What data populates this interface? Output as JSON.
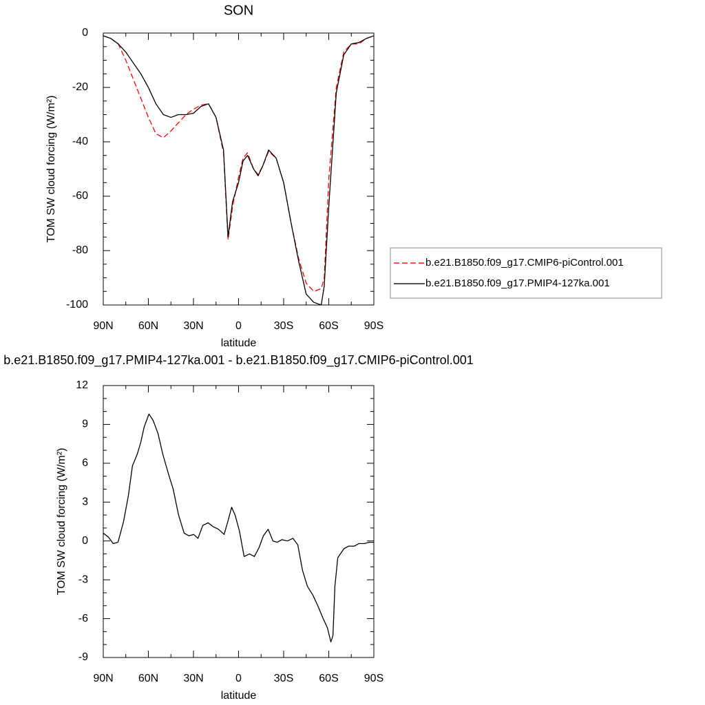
{
  "chart_data": [
    {
      "type": "line",
      "title": "SON",
      "xlabel": "latitude",
      "ylabel": "TOM SW cloud forcing (W/m²)",
      "x": [
        90,
        85,
        80,
        75,
        70,
        65,
        60,
        55,
        50,
        45,
        40,
        35,
        30,
        25,
        20,
        15,
        10,
        7,
        4,
        0,
        -3,
        -6,
        -10,
        -13,
        -16,
        -20,
        -25,
        -30,
        -35,
        -40,
        -45,
        -50,
        -55,
        -57,
        -60,
        -65,
        -70,
        -75,
        -80,
        -85,
        -90
      ],
      "series": [
        {
          "name": "b.e21.B1850.f09_g17.CMIP6-piControl.001",
          "color": "#ff0000",
          "dashed": true,
          "values": [
            -1,
            -2,
            -4,
            -10,
            -17,
            -24,
            -31,
            -37,
            -38.5,
            -36,
            -33,
            -30,
            -28,
            -26.5,
            -26,
            -31,
            -44,
            -76,
            -64,
            -53,
            -46,
            -44,
            -50,
            -52,
            -49,
            -43.5,
            -46,
            -55,
            -70,
            -83,
            -92,
            -95,
            -94,
            -90,
            -54,
            -20,
            -7,
            -4,
            -4,
            -2,
            -1
          ]
        },
        {
          "name": "b.e21.B1850.f09_g17.PMIP4-127ka.001",
          "color": "#000000",
          "dashed": false,
          "values": [
            -1,
            -2,
            -4,
            -7,
            -11,
            -15,
            -20,
            -26,
            -30,
            -31,
            -30,
            -30,
            -29.5,
            -27,
            -26,
            -31,
            -43,
            -75,
            -62,
            -55,
            -47,
            -45,
            -50,
            -52.5,
            -49,
            -43,
            -46,
            -55,
            -70,
            -84,
            -96,
            -99,
            -100,
            -93,
            -64,
            -22,
            -8,
            -4,
            -3.5,
            -2,
            -1
          ]
        }
      ],
      "xlim": [
        90,
        -90
      ],
      "xticks": [
        {
          "value": 90,
          "label": "90N"
        },
        {
          "value": 60,
          "label": "60N"
        },
        {
          "value": 30,
          "label": "30N"
        },
        0,
        {
          "value": -30,
          "label": "30S"
        },
        {
          "value": -60,
          "label": "60S"
        },
        {
          "value": -90,
          "label": "90S"
        }
      ],
      "ylim": [
        -100,
        0
      ],
      "yticks": [
        0,
        -20,
        -40,
        -60,
        -80,
        -100
      ],
      "legend": "right"
    },
    {
      "type": "line",
      "title": "b.e21.B1850.f09_g17.PMIP4-127ka.001 - b.e21.B1850.f09_g17.CMIP6-piControl.001",
      "xlabel": "latitude",
      "ylabel": "TOM SW cloud forcing (W/m²)",
      "x": [
        90,
        86.6,
        83.4,
        80.2,
        76.5,
        73.3,
        70.6,
        67.4,
        65.1,
        62.8,
        59.6,
        56.8,
        53.6,
        50.4,
        46.7,
        43.5,
        39.9,
        36.2,
        33.0,
        29.8,
        27.0,
        23.8,
        20.2,
        16.9,
        13.3,
        9.6,
        6.9,
        4.6,
        2.3,
        -0.5,
        -3.7,
        -7.3,
        -10.5,
        -13.7,
        -16.5,
        -19.7,
        -22.9,
        -25.7,
        -28.9,
        -32.5,
        -36.2,
        -39.4,
        -42.6,
        -45.8,
        -49.5,
        -52.7,
        -56.3,
        -59.1,
        -61.4,
        -62.8,
        -64.1,
        -66.0,
        -70.1,
        -73.3,
        -76.9,
        -80.2,
        -83.8,
        -87.0,
        -90
      ],
      "series": [
        {
          "color": "#000000",
          "dashed": false,
          "values": [
            0.6,
            0.3,
            -0.2,
            -0.1,
            1.5,
            3.5,
            5.8,
            6.7,
            7.6,
            8.8,
            9.8,
            9.3,
            8.3,
            6.7,
            5.2,
            4.0,
            2.0,
            0.6,
            0.4,
            0.5,
            0.2,
            1.2,
            1.4,
            1.1,
            0.9,
            0.5,
            1.6,
            2.6,
            2.0,
            0.8,
            -1.2,
            -1.0,
            -1.2,
            -0.5,
            0.4,
            0.9,
            0.0,
            -0.1,
            0.1,
            0.0,
            0.2,
            -0.3,
            -2.3,
            -3.5,
            -4.2,
            -5.0,
            -6.0,
            -6.7,
            -7.8,
            -7.3,
            -3.5,
            -1.3,
            -0.6,
            -0.4,
            -0.4,
            -0.2,
            -0.2,
            -0.1,
            -0.1
          ]
        }
      ],
      "xlim": [
        90,
        -90
      ],
      "xticks": [
        {
          "value": 90,
          "label": "90N"
        },
        {
          "value": 60,
          "label": "60N"
        },
        {
          "value": 30,
          "label": "30N"
        },
        0,
        {
          "value": -30,
          "label": "30S"
        },
        {
          "value": -60,
          "label": "60S"
        },
        {
          "value": -90,
          "label": "90S"
        }
      ],
      "ylim": [
        -9,
        12
      ],
      "yticks": [
        12,
        9,
        6,
        3,
        0,
        -3,
        -6,
        -9
      ]
    }
  ]
}
